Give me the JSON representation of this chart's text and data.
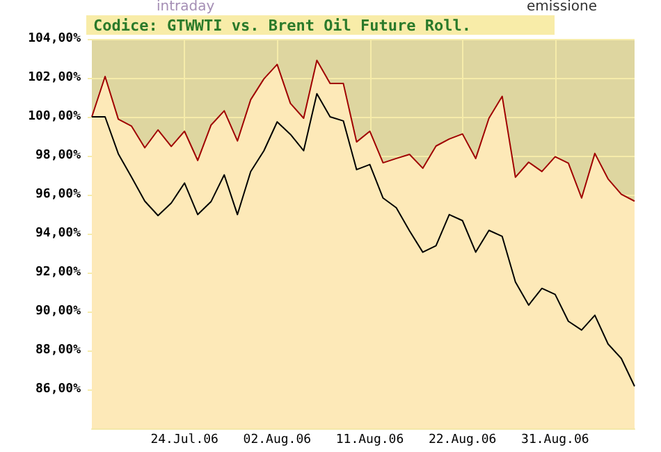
{
  "chart_data": {
    "type": "line",
    "title": "Codice: GTWWTI vs. Brent Oil Future Roll.",
    "annotations": [
      "intraday",
      "emissione"
    ],
    "categories": [
      null,
      null,
      null,
      null,
      null,
      null,
      null,
      "24.Jul.06",
      null,
      null,
      null,
      null,
      null,
      null,
      "02.Aug.06",
      null,
      null,
      null,
      null,
      null,
      null,
      "11.Aug.06",
      null,
      null,
      null,
      null,
      null,
      null,
      "22.Aug.06",
      null,
      null,
      null,
      null,
      null,
      null,
      "31.Aug.06",
      null,
      null,
      null,
      null,
      null,
      null
    ],
    "series": [
      {
        "type": "area",
        "color": "#a00000",
        "values": [
          100.0,
          102.07,
          99.88,
          99.52,
          98.41,
          99.33,
          98.48,
          99.26,
          97.76,
          99.57,
          100.31,
          98.76,
          100.88,
          101.95,
          102.69,
          100.69,
          99.93,
          102.9,
          101.71,
          101.71,
          98.71,
          99.26,
          97.64,
          97.86,
          98.07,
          97.36,
          98.5,
          98.86,
          99.12,
          97.86,
          99.93,
          101.05,
          96.9,
          97.67,
          97.19,
          97.95,
          97.62,
          95.83,
          98.12,
          96.81,
          96.02,
          95.67
        ]
      },
      {
        "type": "line",
        "color": "#000000",
        "values": [
          100.0,
          100.0,
          98.1,
          96.9,
          95.67,
          94.93,
          95.57,
          96.6,
          94.98,
          95.64,
          97.02,
          94.98,
          97.19,
          98.26,
          99.74,
          99.1,
          98.26,
          101.19,
          100.0,
          99.79,
          97.29,
          97.55,
          95.83,
          95.33,
          94.14,
          93.05,
          93.38,
          94.98,
          94.67,
          93.05,
          94.17,
          93.86,
          91.52,
          90.33,
          91.19,
          90.88,
          89.5,
          89.05,
          89.81,
          88.33,
          87.59,
          86.16
        ]
      }
    ],
    "ylim": [
      84,
      104
    ],
    "yticks": [
      {
        "value": 86,
        "label": "86,00%"
      },
      {
        "value": 88,
        "label": "88,00%"
      },
      {
        "value": 90,
        "label": "90,00%"
      },
      {
        "value": 92,
        "label": "92,00%"
      },
      {
        "value": 94,
        "label": "94,00%"
      },
      {
        "value": 96,
        "label": "96,00%"
      },
      {
        "value": 98,
        "label": "98,00%"
      },
      {
        "value": 100,
        "label": "100,00%"
      },
      {
        "value": 102,
        "label": "102,00%"
      },
      {
        "value": 104,
        "label": "104,00%"
      }
    ],
    "grid": true,
    "line_style": "solid",
    "marker": "none"
  }
}
